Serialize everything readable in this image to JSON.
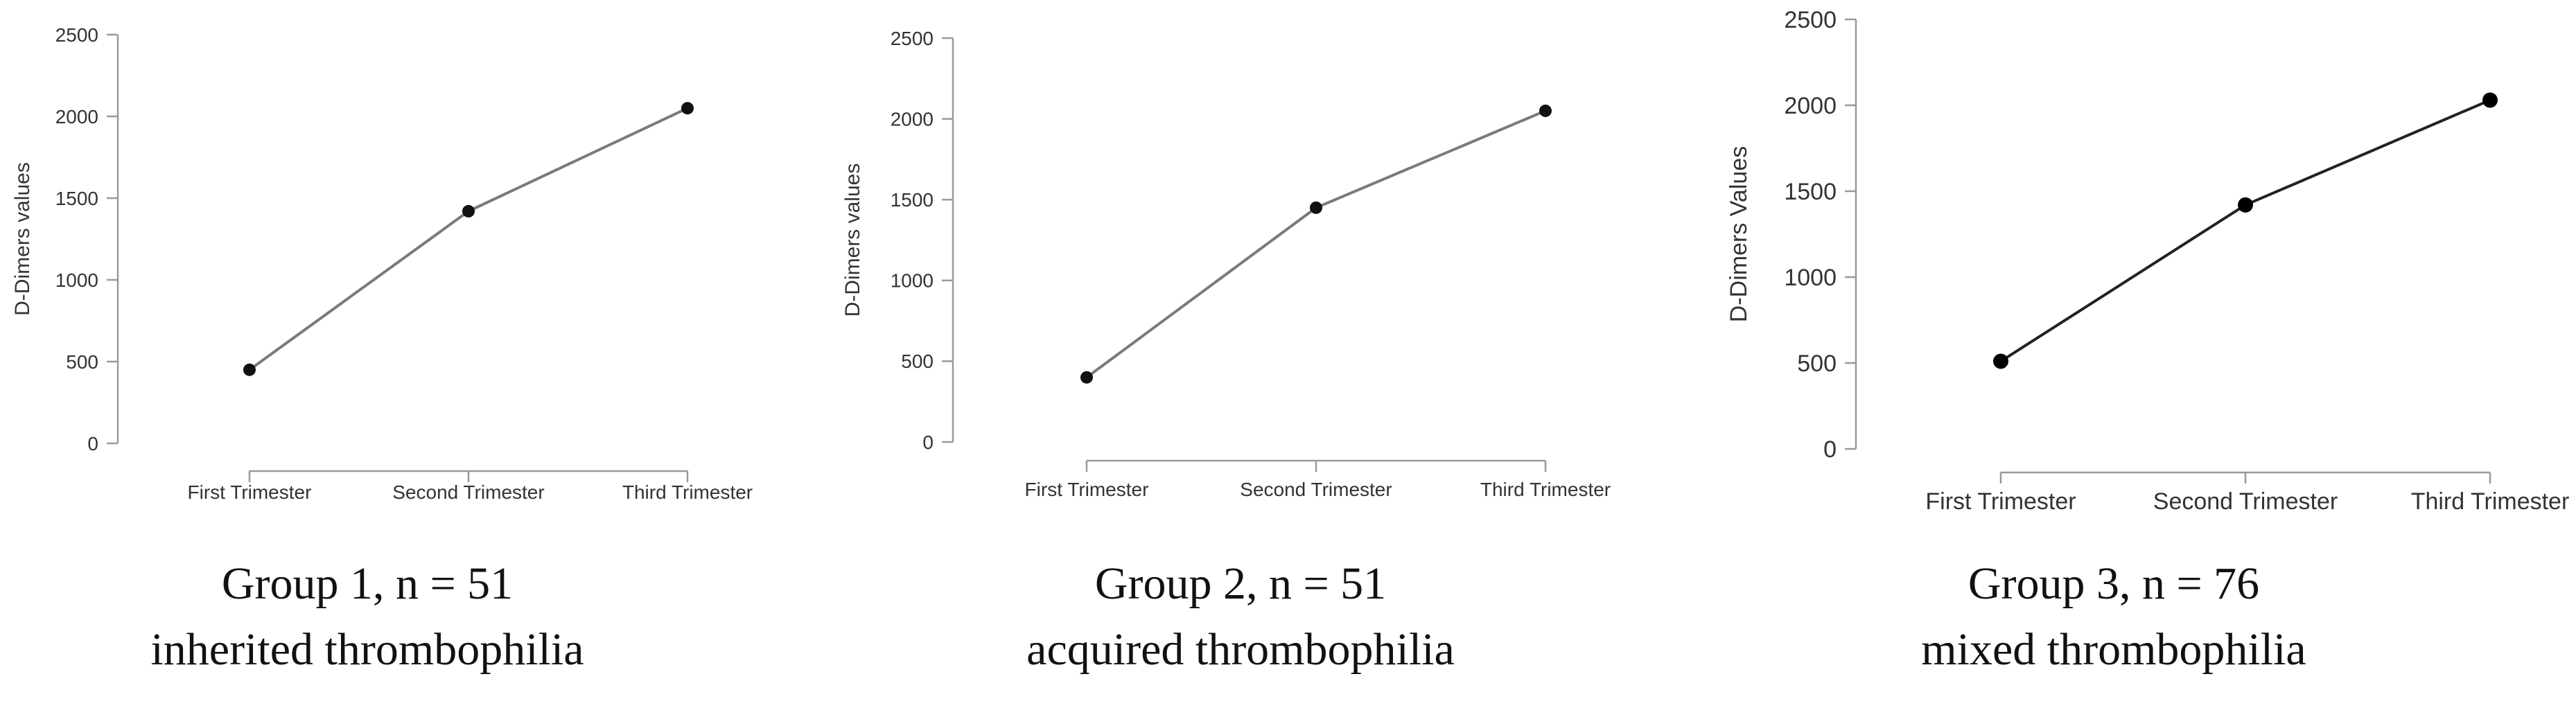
{
  "chart_data": [
    {
      "type": "line",
      "title": "",
      "xlabel": "",
      "ylabel": "D-Dimers values",
      "categories": [
        "First Trimester",
        "Second Trimester",
        "Third Trimester"
      ],
      "series": [
        {
          "values": [
            450,
            1420,
            2050
          ]
        }
      ],
      "ylim": [
        0,
        2500
      ],
      "yticks": [
        0,
        500,
        1000,
        1500,
        2000,
        2500
      ],
      "grid": false,
      "line_color": "#7a7a7a",
      "marker_color": "#111111"
    },
    {
      "type": "line",
      "title": "",
      "xlabel": "",
      "ylabel": "D-Dimers  values",
      "categories": [
        "First Trimester",
        "Second Trimester",
        "Third Trimester"
      ],
      "series": [
        {
          "values": [
            400,
            1450,
            2050
          ]
        }
      ],
      "ylim": [
        0,
        2500
      ],
      "yticks": [
        0,
        500,
        1000,
        1500,
        2000,
        2500
      ],
      "grid": false,
      "line_color": "#7a7a7a",
      "marker_color": "#111111"
    },
    {
      "type": "line",
      "title": "",
      "xlabel": "",
      "ylabel": "D-Dimers Values",
      "categories": [
        "First Trimester",
        "Second Trimester",
        "Third Trimester"
      ],
      "series": [
        {
          "values": [
            510,
            1420,
            2030
          ]
        }
      ],
      "ylim": [
        0,
        2500
      ],
      "yticks": [
        0,
        500,
        1000,
        1500,
        2000,
        2500
      ],
      "grid": false,
      "line_color": "#222222",
      "marker_color": "#000000"
    }
  ],
  "captions": [
    {
      "line1": "Group 1, n = 51",
      "line2": "inherited thrombophilia"
    },
    {
      "line1": "Group 2, n = 51",
      "line2": "acquired thrombophilia"
    },
    {
      "line1": "Group 3, n = 76",
      "line2": "mixed thrombophilia"
    }
  ]
}
